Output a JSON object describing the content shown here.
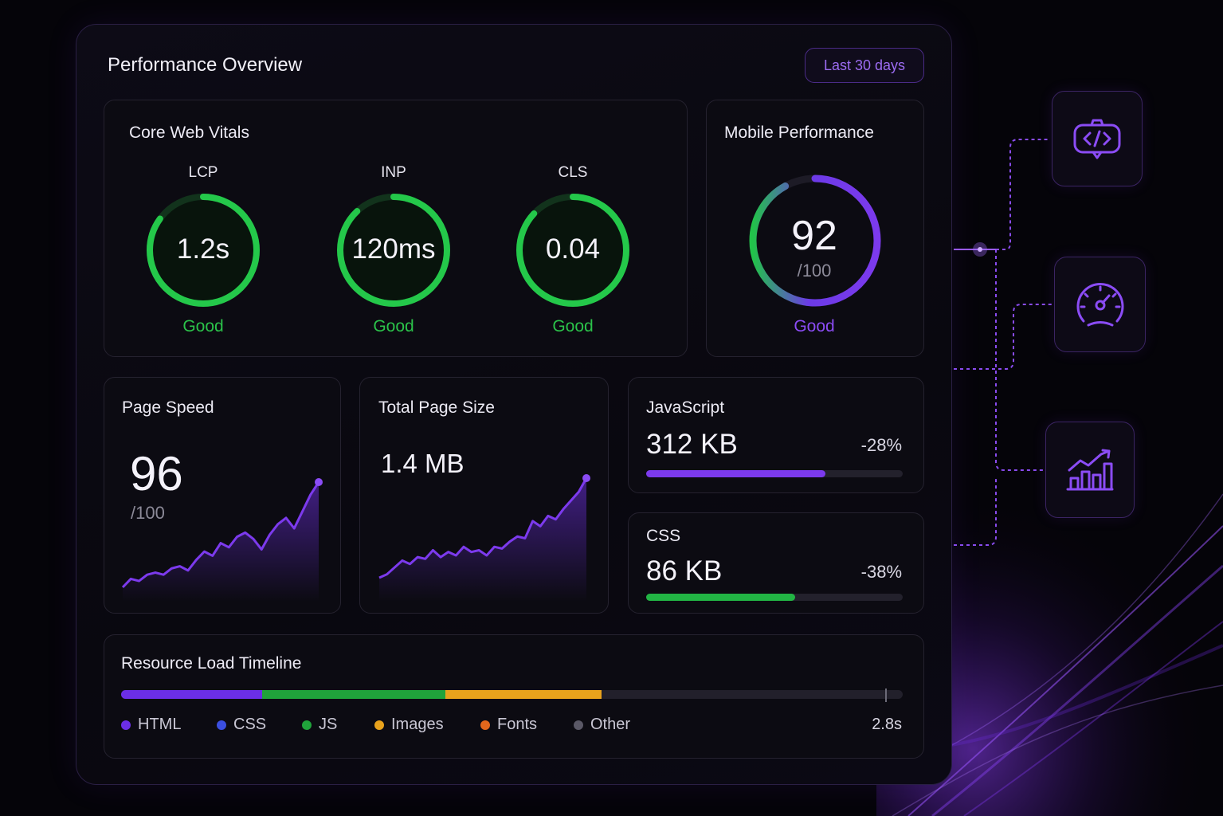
{
  "header": {
    "title": "Performance Overview",
    "range_label": "Last 30 days"
  },
  "core_web_vitals": {
    "title": "Core Web Vitals",
    "metrics": [
      {
        "label": "LCP",
        "value": "1.2s",
        "status": "Good",
        "progress": 0.85
      },
      {
        "label": "INP",
        "value": "120ms",
        "status": "Good",
        "progress": 0.88
      },
      {
        "label": "CLS",
        "value": "0.04",
        "status": "Good",
        "progress": 0.87
      }
    ]
  },
  "mobile": {
    "title": "Mobile Performance",
    "score": "92",
    "max": "/100",
    "status": "Good",
    "progress": 0.92
  },
  "page_speed": {
    "title": "Page Speed",
    "score": "96",
    "max": "/100",
    "trend": [
      2,
      4,
      3.5,
      5,
      5.5,
      5,
      6.5,
      7,
      6,
      8.5,
      10.5,
      9.5,
      12.5,
      11.5,
      14,
      15,
      13.5,
      11,
      14.5,
      17,
      18.5,
      16,
      20,
      24,
      27
    ]
  },
  "total_page_size": {
    "title": "Total Page Size",
    "value": "1.4 MB",
    "trend": [
      3,
      4,
      6,
      8,
      7,
      9,
      8.5,
      11,
      9,
      10.5,
      9.5,
      12,
      10.5,
      11,
      9.5,
      12,
      11.5,
      13.5,
      15,
      14.5,
      19.5,
      18,
      21,
      20,
      23,
      25.5,
      28,
      32
    ]
  },
  "javascript": {
    "title": "JavaScript",
    "value": "312 KB",
    "change": "-28%",
    "progress": 0.7
  },
  "css": {
    "title": "CSS",
    "value": "86 KB",
    "change": "-38%",
    "progress": 0.58
  },
  "timeline": {
    "title": "Resource Load Timeline",
    "total": "2.8s",
    "segments": [
      {
        "name": "HTML",
        "fraction": 0.18,
        "color": "#6b2ee6"
      },
      {
        "name": "CSS",
        "fraction": 0.0,
        "color": "#3b4fe0"
      },
      {
        "name": "JS",
        "fraction": 0.235,
        "color": "#20a33b"
      },
      {
        "name": "Images",
        "fraction": 0.2,
        "color": "#e8a21c"
      },
      {
        "name": "Fonts",
        "fraction": 0.0,
        "color": "#e2671c"
      },
      {
        "name": "Other",
        "fraction": 0.0,
        "color": "#5a5866"
      }
    ]
  },
  "side_actions": [
    {
      "icon": "code-bot-icon"
    },
    {
      "icon": "speedometer-icon"
    },
    {
      "icon": "bar-chart-growth-icon"
    }
  ],
  "colors": {
    "accent": "#7c3aed",
    "good": "#22c24a",
    "bg": "#050409"
  }
}
